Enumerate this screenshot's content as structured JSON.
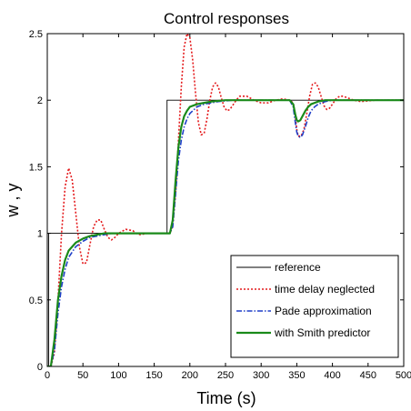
{
  "chart_data": {
    "type": "line",
    "title": "Control responses",
    "xlabel": "Time (s)",
    "ylabel": "w , y",
    "xlim": [
      0,
      500
    ],
    "ylim": [
      0,
      2.5
    ],
    "xticks": [
      0,
      50,
      100,
      150,
      200,
      250,
      300,
      350,
      400,
      450,
      500
    ],
    "yticks": [
      0,
      0.5,
      1,
      1.5,
      2,
      2.5
    ],
    "xtick_labels": [
      "0",
      "50",
      "100",
      "150",
      "200",
      "250",
      "300",
      "350",
      "400",
      "450",
      "500"
    ],
    "ytick_labels": [
      "0",
      "0.5",
      "1",
      "1.5",
      "2",
      "2.5"
    ],
    "grid": false,
    "legend_position": "bottom-right",
    "series": [
      {
        "name": "reference",
        "color": "#000000",
        "style": "solid",
        "x": [
          0,
          2,
          2,
          168,
          168,
          500
        ],
        "y": [
          0,
          0,
          1,
          1,
          2,
          2
        ]
      },
      {
        "name": "time delay neglected",
        "color": "#e41a1c",
        "style": "dotted",
        "x": [
          0,
          5,
          10,
          15,
          20,
          25,
          30,
          35,
          40,
          45,
          50,
          55,
          60,
          65,
          70,
          75,
          80,
          85,
          90,
          95,
          100,
          110,
          120,
          125,
          130,
          140,
          150,
          160,
          168,
          172,
          176,
          180,
          184,
          188,
          192,
          196,
          200,
          204,
          208,
          212,
          216,
          220,
          224,
          228,
          232,
          236,
          240,
          244,
          248,
          252,
          256,
          260,
          265,
          270,
          280,
          290,
          300,
          310,
          320,
          330,
          340,
          345,
          348,
          350,
          352,
          356,
          360,
          364,
          368,
          372,
          376,
          380,
          384,
          388,
          392,
          396,
          400,
          405,
          410,
          415,
          420,
          430,
          440,
          460,
          480,
          500
        ],
        "y": [
          0,
          0,
          0.1,
          0.5,
          1.0,
          1.35,
          1.49,
          1.4,
          1.15,
          0.9,
          0.77,
          0.78,
          0.92,
          1.05,
          1.1,
          1.1,
          1.03,
          0.97,
          0.95,
          0.97,
          1.0,
          1.03,
          1.02,
          1.0,
          0.99,
          1.0,
          1.0,
          1.0,
          1.0,
          1.0,
          1.05,
          1.3,
          1.7,
          2.1,
          2.4,
          2.5,
          2.47,
          2.3,
          2.05,
          1.83,
          1.74,
          1.75,
          1.86,
          2.0,
          2.1,
          2.13,
          2.1,
          2.02,
          1.95,
          1.92,
          1.93,
          1.96,
          2.0,
          2.03,
          2.03,
          2.0,
          1.98,
          1.98,
          2.0,
          2.01,
          2.0,
          1.98,
          1.88,
          1.78,
          1.73,
          1.73,
          1.78,
          1.9,
          2.03,
          2.12,
          2.13,
          2.1,
          2.03,
          1.96,
          1.93,
          1.94,
          1.97,
          2.01,
          2.03,
          2.03,
          2.02,
          2.0,
          1.99,
          2.0,
          2.0,
          2.0
        ]
      },
      {
        "name": "Pade approximation",
        "color": "#1f3fc8",
        "style": "dashdot",
        "x": [
          0,
          5,
          10,
          15,
          20,
          25,
          30,
          40,
          50,
          60,
          70,
          80,
          90,
          100,
          120,
          140,
          160,
          168,
          172,
          176,
          180,
          184,
          188,
          192,
          196,
          200,
          210,
          220,
          230,
          240,
          250,
          260,
          280,
          300,
          320,
          340,
          345,
          348,
          350,
          352,
          355,
          358,
          362,
          366,
          370,
          375,
          380,
          390,
          400,
          410,
          420,
          440,
          460,
          480,
          500
        ],
        "y": [
          0,
          0,
          0.12,
          0.4,
          0.6,
          0.73,
          0.82,
          0.9,
          0.94,
          0.97,
          0.98,
          0.99,
          1.0,
          1.0,
          1.0,
          1.0,
          1.0,
          1.0,
          1.0,
          1.05,
          1.3,
          1.55,
          1.7,
          1.8,
          1.86,
          1.9,
          1.95,
          1.97,
          1.98,
          1.99,
          1.995,
          2.0,
          2.0,
          2.0,
          2.0,
          2.0,
          1.95,
          1.83,
          1.76,
          1.73,
          1.72,
          1.74,
          1.8,
          1.87,
          1.92,
          1.95,
          1.97,
          1.99,
          2.0,
          2.0,
          2.0,
          2.0,
          2.0,
          2.0,
          2.0
        ]
      },
      {
        "name": "with Smith predictor",
        "color": "#1a8a1a",
        "style": "solid",
        "x": [
          0,
          5,
          10,
          15,
          20,
          25,
          30,
          40,
          50,
          60,
          70,
          80,
          90,
          100,
          120,
          140,
          160,
          168,
          172,
          176,
          180,
          184,
          188,
          192,
          196,
          200,
          210,
          220,
          230,
          240,
          250,
          260,
          280,
          300,
          320,
          340,
          345,
          348,
          350,
          352,
          355,
          358,
          362,
          366,
          370,
          375,
          380,
          390,
          400,
          410,
          420,
          440,
          460,
          480,
          500
        ],
        "y": [
          0,
          0,
          0.2,
          0.5,
          0.68,
          0.8,
          0.87,
          0.93,
          0.96,
          0.98,
          0.99,
          1.0,
          1.0,
          1.0,
          1.0,
          1.0,
          1.0,
          1.0,
          1.0,
          1.1,
          1.4,
          1.65,
          1.8,
          1.88,
          1.92,
          1.95,
          1.97,
          1.98,
          1.99,
          1.995,
          2.0,
          2.0,
          2.0,
          2.0,
          2.0,
          2.0,
          1.97,
          1.89,
          1.85,
          1.84,
          1.85,
          1.88,
          1.92,
          1.95,
          1.97,
          1.98,
          1.99,
          2.0,
          2.0,
          2.0,
          2.0,
          2.0,
          2.0,
          2.0,
          2.0
        ]
      }
    ]
  }
}
